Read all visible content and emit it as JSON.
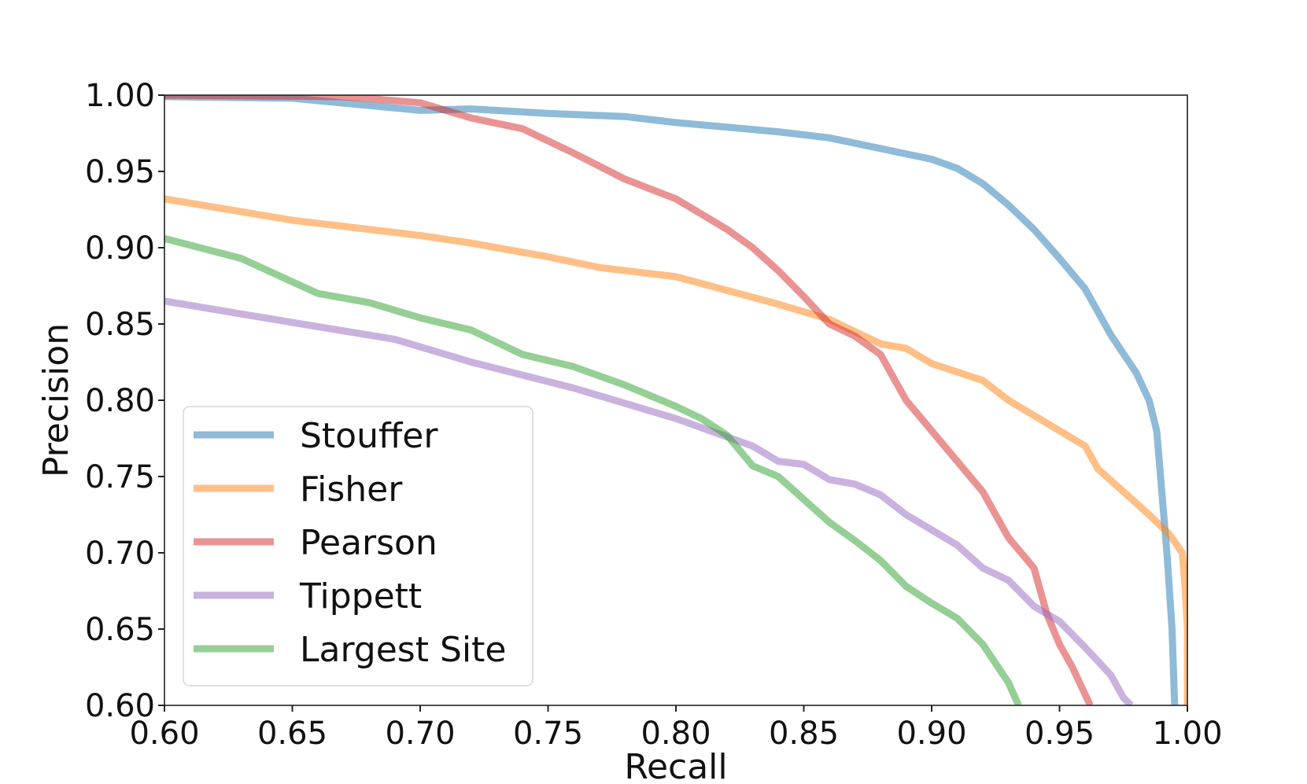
{
  "chart_data": {
    "type": "line",
    "title": "",
    "xlabel": "Recall",
    "ylabel": "Precision",
    "xlim": [
      0.6,
      1.0
    ],
    "ylim": [
      0.6,
      1.0
    ],
    "x_ticks": [
      0.6,
      0.65,
      0.7,
      0.75,
      0.8,
      0.85,
      0.9,
      0.95,
      1.0
    ],
    "x_tick_labels": [
      "0.60",
      "0.65",
      "0.70",
      "0.75",
      "0.80",
      "0.85",
      "0.90",
      "0.95",
      "1.00"
    ],
    "y_ticks": [
      0.6,
      0.65,
      0.7,
      0.75,
      0.8,
      0.85,
      0.9,
      0.95,
      1.0
    ],
    "y_tick_labels": [
      "0.60",
      "0.65",
      "0.70",
      "0.75",
      "0.80",
      "0.85",
      "0.90",
      "0.95",
      "1.00"
    ],
    "grid": false,
    "legend_position": "lower-left",
    "series": [
      {
        "name": "Stouffer",
        "color": "#1f77b4",
        "points": [
          [
            0.6,
            0.999
          ],
          [
            0.65,
            0.998
          ],
          [
            0.675,
            0.994
          ],
          [
            0.7,
            0.99
          ],
          [
            0.72,
            0.991
          ],
          [
            0.75,
            0.988
          ],
          [
            0.78,
            0.986
          ],
          [
            0.8,
            0.982
          ],
          [
            0.82,
            0.979
          ],
          [
            0.84,
            0.976
          ],
          [
            0.86,
            0.972
          ],
          [
            0.88,
            0.965
          ],
          [
            0.9,
            0.958
          ],
          [
            0.91,
            0.952
          ],
          [
            0.92,
            0.942
          ],
          [
            0.93,
            0.928
          ],
          [
            0.94,
            0.912
          ],
          [
            0.95,
            0.893
          ],
          [
            0.96,
            0.873
          ],
          [
            0.97,
            0.843
          ],
          [
            0.98,
            0.818
          ],
          [
            0.985,
            0.8
          ],
          [
            0.988,
            0.78
          ],
          [
            0.99,
            0.74
          ],
          [
            0.992,
            0.7
          ],
          [
            0.994,
            0.65
          ],
          [
            0.995,
            0.6
          ]
        ]
      },
      {
        "name": "Fisher",
        "color": "#ff7f0e",
        "points": [
          [
            0.6,
            0.932
          ],
          [
            0.65,
            0.918
          ],
          [
            0.7,
            0.908
          ],
          [
            0.72,
            0.903
          ],
          [
            0.75,
            0.894
          ],
          [
            0.77,
            0.887
          ],
          [
            0.8,
            0.881
          ],
          [
            0.82,
            0.872
          ],
          [
            0.84,
            0.863
          ],
          [
            0.86,
            0.853
          ],
          [
            0.88,
            0.837
          ],
          [
            0.89,
            0.834
          ],
          [
            0.9,
            0.824
          ],
          [
            0.92,
            0.813
          ],
          [
            0.93,
            0.8
          ],
          [
            0.94,
            0.79
          ],
          [
            0.95,
            0.78
          ],
          [
            0.96,
            0.77
          ],
          [
            0.965,
            0.755
          ],
          [
            0.975,
            0.74
          ],
          [
            0.985,
            0.725
          ],
          [
            0.993,
            0.712
          ],
          [
            0.998,
            0.7
          ],
          [
            0.999,
            0.68
          ],
          [
            1.0,
            0.65
          ],
          [
            1.0,
            0.6
          ]
        ]
      },
      {
        "name": "Pearson",
        "color": "#d62728",
        "points": [
          [
            0.6,
            1.0
          ],
          [
            0.67,
            0.999
          ],
          [
            0.7,
            0.995
          ],
          [
            0.72,
            0.985
          ],
          [
            0.74,
            0.978
          ],
          [
            0.76,
            0.962
          ],
          [
            0.78,
            0.945
          ],
          [
            0.8,
            0.932
          ],
          [
            0.82,
            0.912
          ],
          [
            0.83,
            0.9
          ],
          [
            0.84,
            0.885
          ],
          [
            0.85,
            0.868
          ],
          [
            0.86,
            0.85
          ],
          [
            0.87,
            0.842
          ],
          [
            0.88,
            0.83
          ],
          [
            0.89,
            0.8
          ],
          [
            0.9,
            0.78
          ],
          [
            0.91,
            0.76
          ],
          [
            0.92,
            0.74
          ],
          [
            0.93,
            0.71
          ],
          [
            0.94,
            0.69
          ],
          [
            0.945,
            0.66
          ],
          [
            0.95,
            0.64
          ],
          [
            0.955,
            0.625
          ],
          [
            0.962,
            0.6
          ]
        ]
      },
      {
        "name": "Tippett",
        "color": "#9467bd",
        "points": [
          [
            0.6,
            0.865
          ],
          [
            0.65,
            0.851
          ],
          [
            0.69,
            0.84
          ],
          [
            0.72,
            0.825
          ],
          [
            0.76,
            0.808
          ],
          [
            0.8,
            0.788
          ],
          [
            0.83,
            0.77
          ],
          [
            0.84,
            0.76
          ],
          [
            0.85,
            0.758
          ],
          [
            0.86,
            0.748
          ],
          [
            0.87,
            0.745
          ],
          [
            0.88,
            0.738
          ],
          [
            0.89,
            0.725
          ],
          [
            0.9,
            0.715
          ],
          [
            0.91,
            0.705
          ],
          [
            0.92,
            0.69
          ],
          [
            0.93,
            0.682
          ],
          [
            0.94,
            0.665
          ],
          [
            0.95,
            0.655
          ],
          [
            0.96,
            0.638
          ],
          [
            0.97,
            0.62
          ],
          [
            0.975,
            0.605
          ],
          [
            0.978,
            0.6
          ]
        ]
      },
      {
        "name": "Largest Site",
        "color": "#2ca02c",
        "points": [
          [
            0.6,
            0.906
          ],
          [
            0.63,
            0.893
          ],
          [
            0.66,
            0.87
          ],
          [
            0.68,
            0.864
          ],
          [
            0.7,
            0.854
          ],
          [
            0.72,
            0.846
          ],
          [
            0.74,
            0.83
          ],
          [
            0.76,
            0.822
          ],
          [
            0.78,
            0.81
          ],
          [
            0.8,
            0.796
          ],
          [
            0.81,
            0.788
          ],
          [
            0.82,
            0.777
          ],
          [
            0.83,
            0.757
          ],
          [
            0.84,
            0.75
          ],
          [
            0.85,
            0.735
          ],
          [
            0.86,
            0.72
          ],
          [
            0.87,
            0.708
          ],
          [
            0.88,
            0.695
          ],
          [
            0.89,
            0.678
          ],
          [
            0.9,
            0.667
          ],
          [
            0.91,
            0.657
          ],
          [
            0.92,
            0.64
          ],
          [
            0.93,
            0.615
          ],
          [
            0.934,
            0.6
          ]
        ]
      }
    ]
  }
}
